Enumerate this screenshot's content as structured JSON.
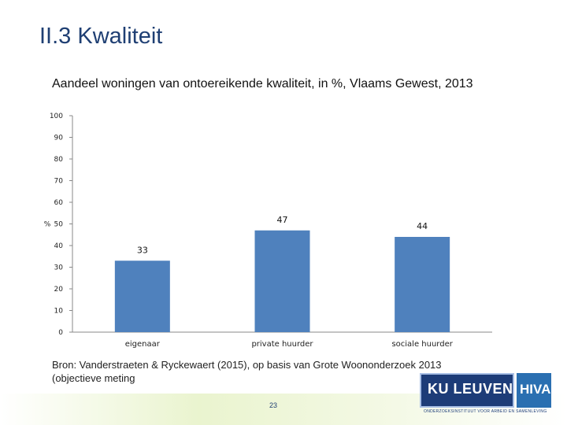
{
  "slide": {
    "title": "II.3 Kwaliteit",
    "source": "Bron: Vanderstraeten & Ryckewaert (2015), op basis van Grote Woononderzoek 2013 (objectieve meting",
    "page_number": "23"
  },
  "logos": {
    "ku_leuven": "KU LEUVEN",
    "hiva": "HIVA",
    "tagline": "ONDERZOEKSINSTITUUT VOOR ARBEID EN SAMENLEVING"
  },
  "chart_data": {
    "type": "bar",
    "title": "Aandeel woningen van ontoereikende kwaliteit, in %, Vlaams Gewest, 2013",
    "xlabel": "",
    "ylabel": "%",
    "categories": [
      "eigenaar",
      "private huurder",
      "sociale huurder"
    ],
    "values": [
      33,
      47,
      44
    ],
    "data_labels": [
      "33",
      "47",
      "44"
    ],
    "ylim": [
      0,
      100
    ],
    "yticks": [
      0,
      10,
      20,
      30,
      40,
      50,
      60,
      70,
      80,
      90,
      100
    ],
    "bar_color": "#4f81bd",
    "grid": false,
    "legend": "none"
  }
}
